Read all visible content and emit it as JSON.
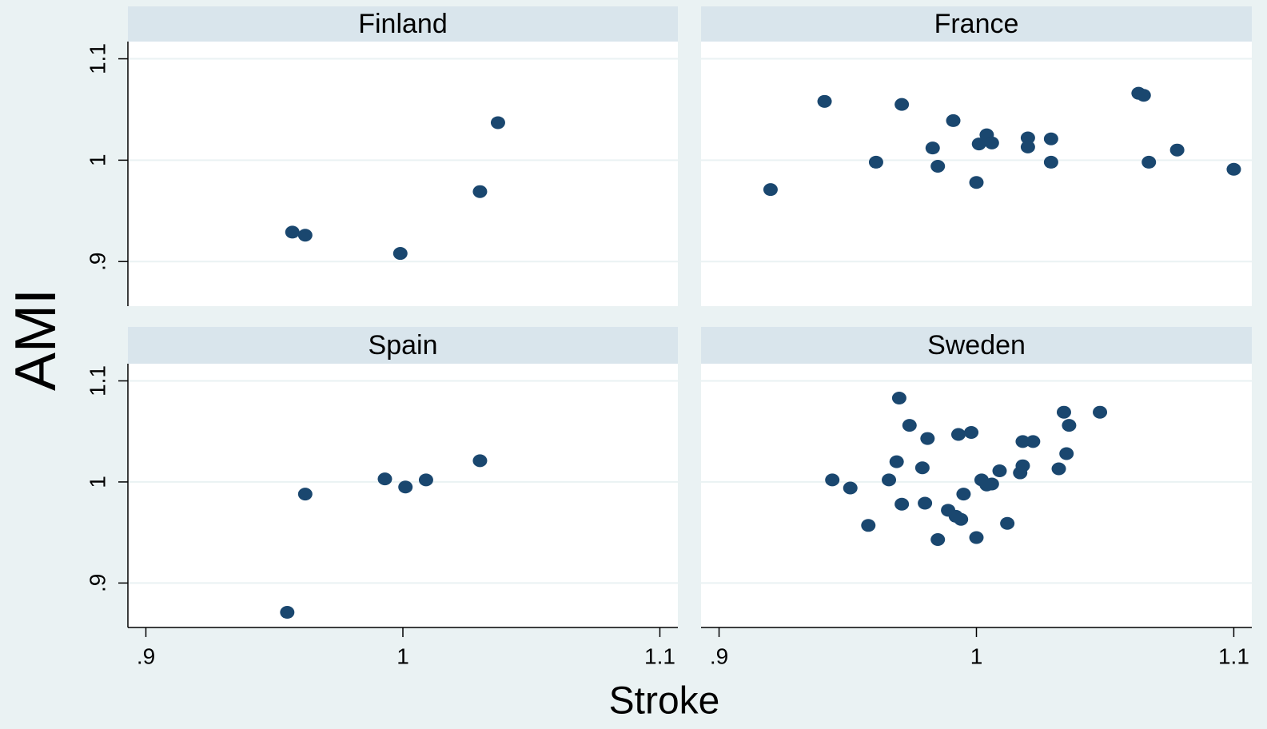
{
  "y_title": "AMI",
  "x_title": "Stroke",
  "chart_data": [
    {
      "type": "scatter",
      "title": "Finland",
      "color": "#1a476f",
      "grid": true,
      "xlim": [
        0.893,
        1.107
      ],
      "ylim": [
        0.856,
        1.117
      ],
      "yticks": [
        {
          "value": 0.9,
          "label": ".9"
        },
        1,
        1.1
      ],
      "x": [
        0.957,
        0.962,
        0.999,
        1.03,
        1.037
      ],
      "values": [
        0.929,
        0.926,
        0.908,
        0.969,
        1.037
      ]
    },
    {
      "type": "scatter",
      "title": "France",
      "color": "#1a476f",
      "grid": true,
      "xlim": [
        0.893,
        1.107
      ],
      "ylim": [
        0.856,
        1.117
      ],
      "x": [
        0.92,
        0.941,
        0.961,
        0.971,
        0.983,
        0.985,
        0.991,
        1.0,
        1.001,
        1.004,
        1.006,
        1.02,
        1.02,
        1.029,
        1.029,
        1.063,
        1.065,
        1.067,
        1.078,
        1.1
      ],
      "values": [
        0.971,
        1.058,
        0.998,
        1.055,
        1.012,
        0.994,
        1.039,
        0.978,
        1.016,
        1.025,
        1.017,
        1.022,
        1.013,
        1.021,
        0.998,
        1.066,
        1.064,
        0.998,
        1.01,
        0.991
      ]
    },
    {
      "type": "scatter",
      "title": "Spain",
      "color": "#1a476f",
      "grid": true,
      "xlim": [
        0.893,
        1.107
      ],
      "ylim": [
        0.856,
        1.117
      ],
      "yticks": [
        {
          "value": 0.9,
          "label": ".9"
        },
        1,
        1.1
      ],
      "xticks": [
        {
          "value": 0.9,
          "label": ".9"
        },
        1,
        1.1
      ],
      "x": [
        0.955,
        0.962,
        0.993,
        1.001,
        1.009,
        1.03
      ],
      "values": [
        0.871,
        0.988,
        1.003,
        0.995,
        1.002,
        1.021
      ]
    },
    {
      "type": "scatter",
      "title": "Sweden",
      "color": "#1a476f",
      "grid": true,
      "xlim": [
        0.893,
        1.107
      ],
      "ylim": [
        0.856,
        1.117
      ],
      "xticks": [
        {
          "value": 0.9,
          "label": ".9"
        },
        1,
        1.1
      ],
      "x": [
        0.944,
        0.951,
        0.958,
        0.966,
        0.969,
        0.97,
        0.971,
        0.974,
        0.979,
        0.98,
        0.981,
        0.985,
        0.989,
        0.992,
        0.993,
        0.994,
        0.995,
        0.998,
        1.0,
        1.002,
        1.004,
        1.006,
        1.009,
        1.012,
        1.017,
        1.018,
        1.018,
        1.022,
        1.032,
        1.034,
        1.035,
        1.036,
        1.048
      ],
      "values": [
        1.002,
        0.994,
        0.957,
        1.002,
        1.02,
        1.083,
        0.978,
        1.056,
        1.014,
        0.979,
        1.043,
        0.943,
        0.972,
        0.966,
        1.047,
        0.963,
        0.988,
        1.049,
        0.945,
        1.002,
        0.997,
        0.998,
        1.011,
        0.959,
        1.009,
        1.04,
        1.016,
        1.04,
        1.013,
        1.069,
        1.028,
        1.056,
        1.069
      ]
    }
  ]
}
